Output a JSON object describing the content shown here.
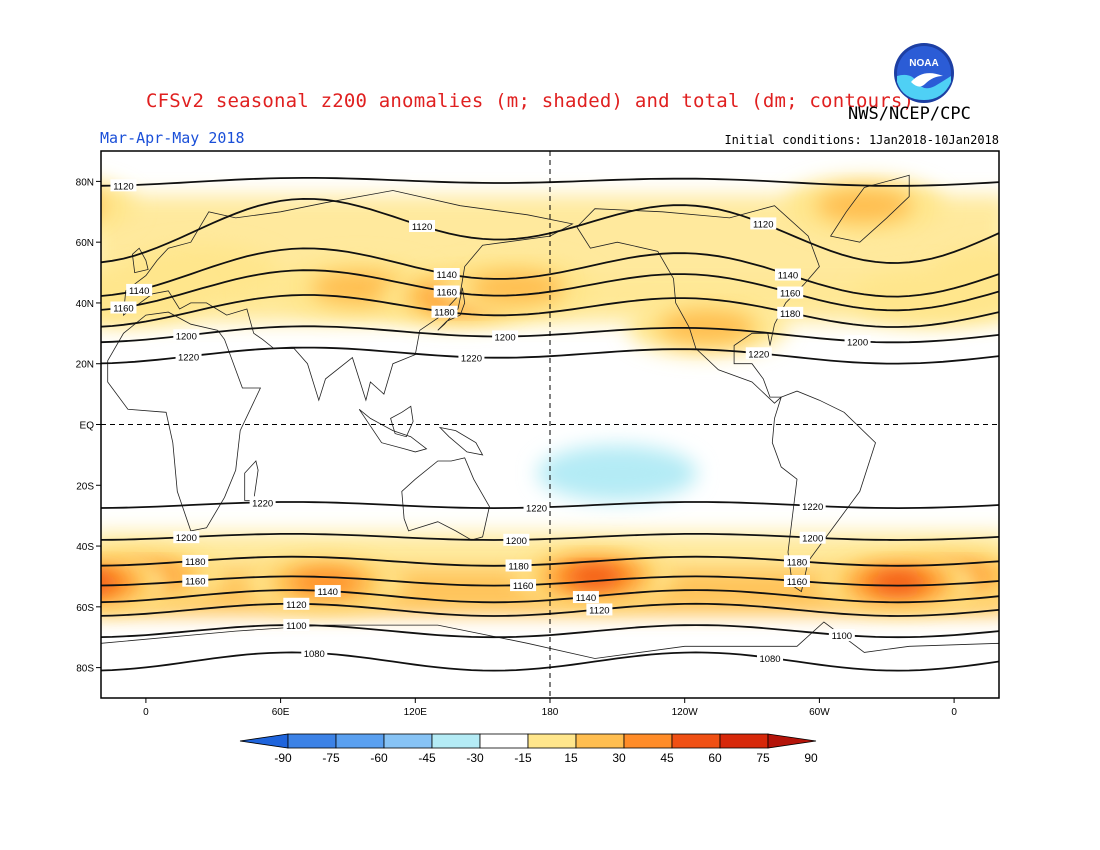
{
  "header": {
    "title": "CFSv2 seasonal z200 anomalies (m; shaded) and total (dm; contours)",
    "agency": "NWS/NCEP/CPC",
    "season": "Mar-Apr-May 2018",
    "initial_conditions": "Initial conditions: 1Jan2018-10Jan2018",
    "logo_text": "NOAA"
  },
  "map": {
    "projection": "cylindrical equidistant, centered on 180",
    "lon_range": [
      -20,
      20
    ],
    "lat_range": [
      -90,
      90
    ],
    "lat_ticks": [
      {
        "lat": 80,
        "label": "80N"
      },
      {
        "lat": 60,
        "label": "60N"
      },
      {
        "lat": 40,
        "label": "40N"
      },
      {
        "lat": 20,
        "label": "20N"
      },
      {
        "lat": 0,
        "label": "EQ"
      },
      {
        "lat": -20,
        "label": "20S"
      },
      {
        "lat": -40,
        "label": "40S"
      },
      {
        "lat": -60,
        "label": "60S"
      },
      {
        "lat": -80,
        "label": "80S"
      }
    ],
    "lon_ticks": [
      {
        "lon": 0,
        "label": "0"
      },
      {
        "lon": 60,
        "label": "60E"
      },
      {
        "lon": 120,
        "label": "120E"
      },
      {
        "lon": 180,
        "label": "180"
      },
      {
        "lon": 240,
        "label": "120W"
      },
      {
        "lon": 300,
        "label": "60W"
      },
      {
        "lon": 360,
        "label": "0"
      }
    ],
    "dashed_lines": [
      "equator",
      "dateline"
    ],
    "contours_dm": [
      {
        "value": 1080,
        "lat": -78,
        "amp": 3,
        "labels": [
          {
            "lon": 75,
            "text": "1080"
          },
          {
            "lon": 278,
            "text": "1080"
          }
        ]
      },
      {
        "value": 1100,
        "lat": -68,
        "amp": 2,
        "labels": [
          {
            "lon": 67,
            "text": "1100"
          },
          {
            "lon": 310,
            "text": "1100"
          }
        ]
      },
      {
        "value": 1120,
        "lat": -61,
        "amp": 2,
        "labels": [
          {
            "lon": 67,
            "text": "1120"
          },
          {
            "lon": 202,
            "text": "1120"
          }
        ]
      },
      {
        "value": 1140,
        "lat": -56.5,
        "amp": 2,
        "labels": [
          {
            "lon": 81,
            "text": "1140"
          },
          {
            "lon": 196,
            "text": "1140"
          }
        ]
      },
      {
        "value": 1160,
        "lat": -51.5,
        "amp": 1.5,
        "labels": [
          {
            "lon": 22,
            "text": "1160"
          },
          {
            "lon": 168,
            "text": "1160"
          },
          {
            "lon": 290,
            "text": "1160"
          }
        ]
      },
      {
        "value": 1180,
        "lat": -45,
        "amp": 1.5,
        "labels": [
          {
            "lon": 22,
            "text": "1180"
          },
          {
            "lon": 166,
            "text": "1180"
          },
          {
            "lon": 290,
            "text": "1180"
          }
        ]
      },
      {
        "value": 1200,
        "lat": -37,
        "amp": 1,
        "labels": [
          {
            "lon": 18,
            "text": "1200"
          },
          {
            "lon": 165,
            "text": "1200"
          },
          {
            "lon": 297,
            "text": "1200"
          }
        ]
      },
      {
        "value": 1220,
        "lat": -26.5,
        "amp": 1,
        "labels": [
          {
            "lon": 52,
            "text": "1220"
          },
          {
            "lon": 174,
            "text": "1220"
          },
          {
            "lon": 297,
            "text": "1220"
          }
        ]
      },
      {
        "value": 1220,
        "lat": 23,
        "amp": 2,
        "labels": [
          {
            "lon": 19,
            "text": "1220"
          },
          {
            "lon": 145,
            "text": "1220"
          },
          {
            "lon": 273,
            "text": "1220"
          }
        ]
      },
      {
        "value": 1200,
        "lat": 30,
        "amp": 2,
        "labels": [
          {
            "lon": 18,
            "text": "1200"
          },
          {
            "lon": 160,
            "text": "1200"
          },
          {
            "lon": 317,
            "text": "1200"
          }
        ]
      },
      {
        "value": 1180,
        "lat": 38,
        "amp": 4,
        "labels": [
          {
            "lon": 133,
            "text": "1180"
          },
          {
            "lon": 287,
            "text": "1180"
          }
        ]
      },
      {
        "value": 1160,
        "lat": 45,
        "amp": 5,
        "labels": [
          {
            "lon": -10,
            "text": "1160"
          },
          {
            "lon": 134,
            "text": "1160"
          },
          {
            "lon": 287,
            "text": "1160"
          }
        ]
      },
      {
        "value": 1140,
        "lat": 51,
        "amp": 6,
        "labels": [
          {
            "lon": -3,
            "text": "1140"
          },
          {
            "lon": 134,
            "text": "1140"
          },
          {
            "lon": 286,
            "text": "1140"
          }
        ]
      },
      {
        "value": 1120,
        "lat": 65,
        "amp": 8,
        "labels": [
          {
            "lon": 123,
            "text": "1120"
          },
          {
            "lon": 275,
            "text": "1120"
          }
        ]
      },
      {
        "value": 1120,
        "lat": 80,
        "amp": 1,
        "labels": [
          {
            "lon": -10,
            "text": "1120"
          }
        ]
      }
    ]
  },
  "colorbar": {
    "ticks": [
      "-90",
      "-75",
      "-60",
      "-45",
      "-30",
      "-15",
      "15",
      "30",
      "45",
      "60",
      "75",
      "90"
    ],
    "colors": [
      "#1e64dc",
      "#3c82e6",
      "#5aa0f0",
      "#87c3f5",
      "#b4ebf5",
      "#ffffff",
      "#ffe68c",
      "#ffbe50",
      "#ff8c28",
      "#f05014",
      "#d7280a",
      "#b4140a"
    ]
  },
  "anomaly_blobs": [
    {
      "lon": 25,
      "lat": 50,
      "level": 1
    },
    {
      "lon": 95,
      "lat": 45,
      "level": 2
    },
    {
      "lon": 140,
      "lat": 42,
      "level": 3
    },
    {
      "lon": 165,
      "lat": 45,
      "level": 2
    },
    {
      "lon": 250,
      "lat": 32,
      "level": 2
    },
    {
      "lon": 320,
      "lat": 72,
      "level": 2
    },
    {
      "lon": 350,
      "lat": 42,
      "level": 1
    },
    {
      "lon": 0,
      "lat": -50,
      "level": 3
    },
    {
      "lon": 80,
      "lat": -52,
      "level": 3
    },
    {
      "lon": 200,
      "lat": -50,
      "level": 4
    },
    {
      "lon": 335,
      "lat": -52,
      "level": 4
    },
    {
      "lon": 210,
      "lat": -16,
      "level": -1
    }
  ]
}
